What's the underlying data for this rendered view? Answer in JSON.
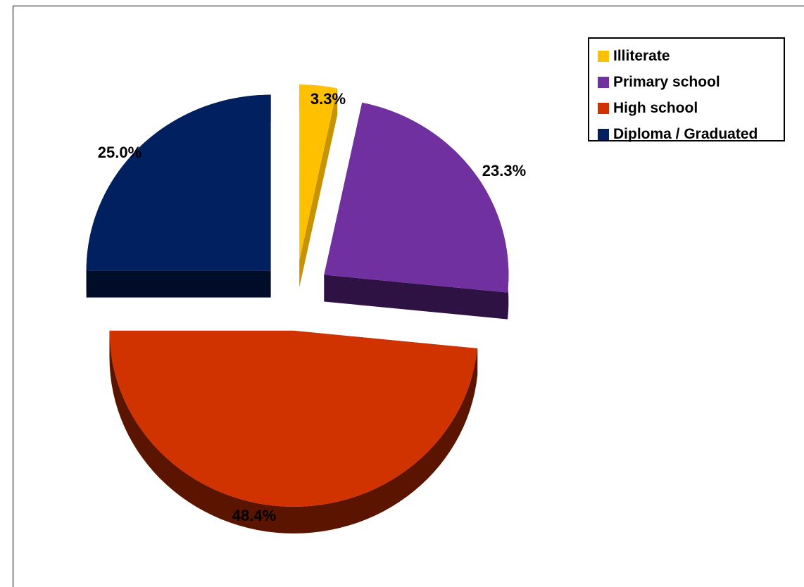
{
  "chart_data": {
    "type": "pie",
    "title": "",
    "categories": [
      "Illiterate",
      "Primary school",
      "High school",
      "Diploma / Graduated"
    ],
    "values": [
      3.3,
      23.3,
      48.4,
      25.0
    ],
    "data_labels": [
      "3.3%",
      "23.3%",
      "48.4%",
      "25.0%"
    ],
    "colors": [
      "#ffc000",
      "#7030a0",
      "#d03300",
      "#002060"
    ],
    "side_colors": [
      "#c89300",
      "#2e1244",
      "#5a1400",
      "#000c28"
    ],
    "style": "3d-exploded",
    "legend_position": "top-right"
  }
}
